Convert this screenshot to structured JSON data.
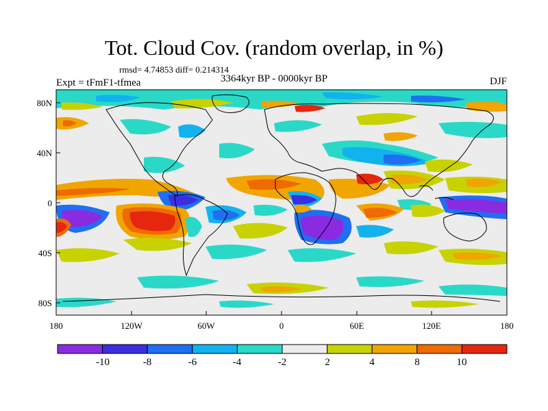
{
  "title": "Tot. Cloud Cov. (random overlap, in %)",
  "stats": "rmsd= 4.74853 diff= 0.214314",
  "experiment": "Expt = tFmF1-tfmea",
  "period": "3364kyr BP - 0000kyr BP",
  "season": "DJF",
  "lat_axis": [
    "80N",
    "40N",
    "0",
    "40S",
    "80S"
  ],
  "lon_axis": [
    "180",
    "120W",
    "60W",
    "0",
    "60E",
    "120E",
    "180"
  ],
  "colorbar": {
    "labels": [
      "-10",
      "-8",
      "-6",
      "-4",
      "-2",
      "2",
      "4",
      "8",
      "10"
    ],
    "colors": [
      "#8a2be2",
      "#3a2fe0",
      "#1f6ff0",
      "#12b2ee",
      "#2ad8c8",
      "#ececec",
      "#c8d200",
      "#f0a500",
      "#ef6a00",
      "#e6260f"
    ]
  }
}
